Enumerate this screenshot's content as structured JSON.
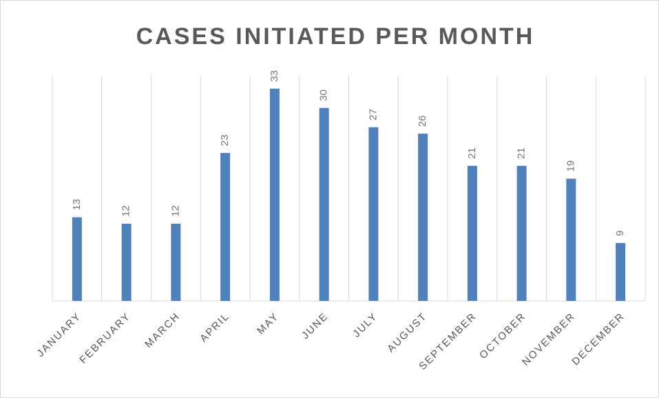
{
  "chart_data": {
    "type": "bar",
    "title": "CASES INITIATED PER MONTH",
    "categories": [
      "JANUARY",
      "FEBRUARY",
      "MARCH",
      "APRIL",
      "MAY",
      "JUNE",
      "JULY",
      "AUGUST",
      "SEPTEMBER",
      "OCTOBER",
      "NOVEMBER",
      "DECEMBER"
    ],
    "values": [
      13,
      12,
      12,
      23,
      33,
      30,
      27,
      26,
      21,
      21,
      19,
      9
    ],
    "color": "#4f81bd",
    "ylim": [
      0,
      35
    ],
    "grid": false
  }
}
